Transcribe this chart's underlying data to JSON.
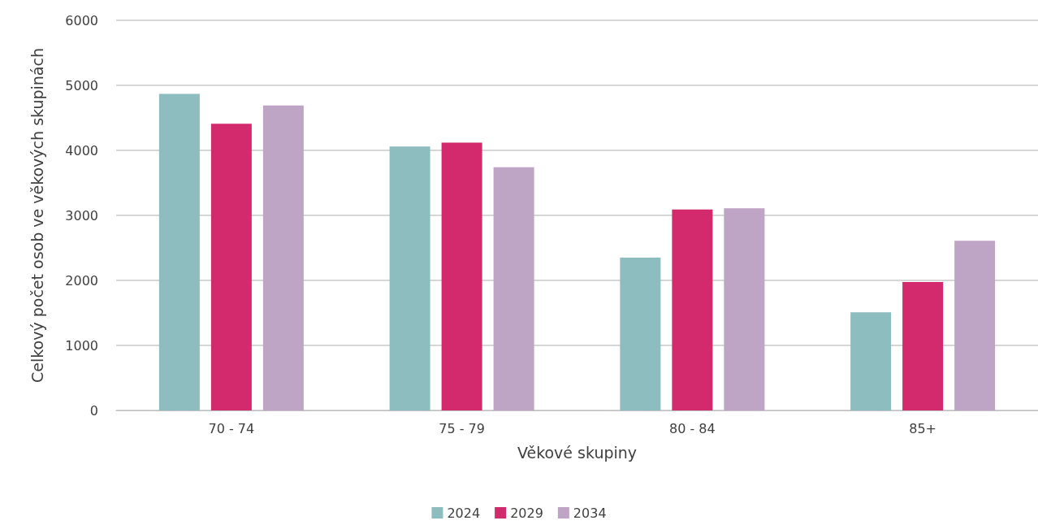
{
  "chart_data": {
    "type": "bar",
    "xlabel": "Věkové skupiny",
    "ylabel": "Celkový počet osob ve věkových skupinách",
    "categories": [
      "70 - 74",
      "75 - 79",
      "80 - 84",
      "85+"
    ],
    "series": [
      {
        "name": "2024",
        "color": "#8dbdbe",
        "values": [
          4870,
          4060,
          2350,
          1510
        ]
      },
      {
        "name": "2029",
        "color": "#d22a6c",
        "values": [
          4410,
          4120,
          3090,
          1975
        ]
      },
      {
        "name": "2034",
        "color": "#bfa5c5",
        "values": [
          4690,
          3740,
          3110,
          2610
        ]
      }
    ],
    "ylim": [
      0,
      6000
    ],
    "yticks": [
      0,
      1000,
      2000,
      3000,
      4000,
      5000,
      6000
    ],
    "grid": "y",
    "legend": "bottom"
  }
}
